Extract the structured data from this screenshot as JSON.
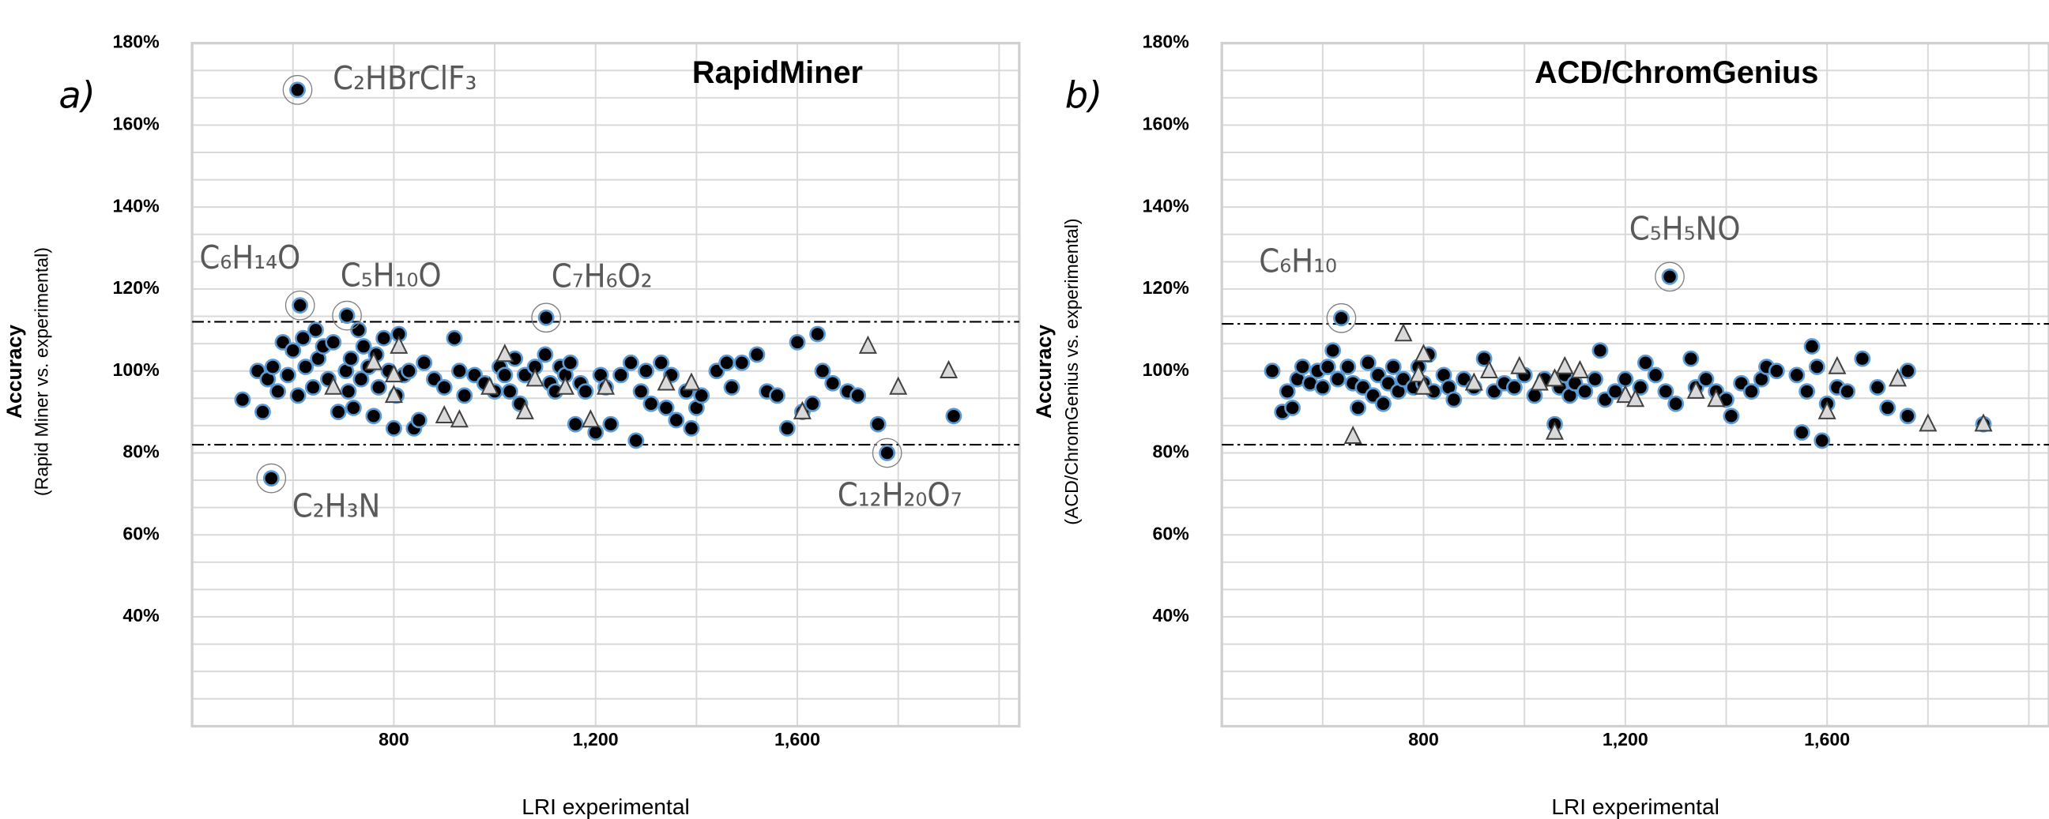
{
  "chart_data": [
    {
      "type": "scatter",
      "panel": "a)",
      "title": "RapidMiner",
      "y_label": "Accuracy",
      "y_sublabel": "(Rapid Miner vs. experimental)",
      "x_label": "LRI experimental",
      "xlim": [
        400,
        2040
      ],
      "ylim": [
        13.3,
        180
      ],
      "xticks": [
        800,
        {
          "value": 1200,
          "label": "1,200"
        },
        {
          "value": 1600,
          "label": "1,600"
        }
      ],
      "yticks": [
        {
          "value": 40,
          "label": "40%"
        },
        {
          "value": 60,
          "label": "60%"
        },
        {
          "value": 80,
          "label": "80%"
        },
        {
          "value": 100,
          "label": "100%"
        },
        {
          "value": 120,
          "label": "120%"
        },
        {
          "value": 140,
          "label": "140%"
        },
        {
          "value": 160,
          "label": "160%"
        },
        {
          "value": 180,
          "label": "180%"
        }
      ],
      "grid": true,
      "reference_lines": [
        112,
        82
      ],
      "series": [
        {
          "marker": "circle",
          "color": "#000000",
          "edge_color": "#5b9bd5",
          "x": [
            500,
            530,
            540,
            550,
            560,
            570,
            580,
            590,
            600,
            610,
            620,
            625,
            614,
            640,
            645,
            650,
            660,
            670,
            680,
            690,
            707,
            705,
            710,
            715,
            720,
            730,
            735,
            740,
            750,
            760,
            765,
            770,
            780,
            790,
            800,
            805,
            810,
            820,
            830,
            840,
            850,
            860,
            880,
            900,
            920,
            930,
            940,
            960,
            980,
            1000,
            1010,
            1020,
            1030,
            1040,
            1050,
            1060,
            1080,
            1102,
            1100,
            1110,
            1120,
            1130,
            1140,
            1150,
            1160,
            1170,
            1180,
            1200,
            1210,
            1220,
            1230,
            1250,
            1270,
            1280,
            1290,
            1300,
            1310,
            1330,
            1340,
            1350,
            1360,
            1380,
            1390,
            1400,
            1410,
            1440,
            1460,
            1470,
            1490,
            1520,
            1540,
            1560,
            1580,
            1600,
            1610,
            1630,
            1640,
            1650,
            1670,
            1700,
            1720,
            1760,
            1778,
            1910,
            557,
            609
          ],
          "values": [
            93,
            100,
            90,
            98,
            101,
            95,
            107,
            99,
            105,
            94,
            108,
            101,
            116,
            96,
            110,
            103,
            106,
            98,
            107,
            90,
            113.5,
            100,
            95,
            103,
            91,
            110,
            98,
            106,
            101,
            89,
            104,
            96,
            108,
            100,
            86,
            94,
            109,
            99,
            100,
            86,
            88,
            102,
            98,
            96,
            108,
            100,
            94,
            99,
            97,
            95,
            101,
            99,
            95,
            103,
            92,
            99,
            101,
            113,
            104,
            97,
            95,
            101,
            99,
            102,
            87,
            97,
            95,
            85,
            99,
            96,
            87,
            99,
            102,
            83,
            95,
            100,
            92,
            102,
            91,
            99,
            88,
            95,
            86,
            91,
            94,
            100,
            102,
            96,
            102,
            104,
            95,
            94,
            86,
            107,
            90,
            92,
            109,
            100,
            97,
            95,
            94,
            87,
            80,
            89,
            73.8,
            168.6
          ]
        },
        {
          "marker": "triangle",
          "color": "#d9d9d9",
          "edge_color": "#404040",
          "x": [
            680,
            760,
            800,
            800,
            810,
            900,
            930,
            990,
            1020,
            1060,
            1080,
            1140,
            1190,
            1220,
            1340,
            1390,
            1610,
            1740,
            1800,
            1900
          ],
          "values": [
            96,
            102,
            99,
            94,
            106,
            89,
            88,
            96,
            104,
            90,
            98,
            96,
            88,
            96,
            97,
            97,
            90,
            106,
            96,
            100
          ]
        }
      ],
      "annotations": [
        {
          "text": "C₂HBrClF₃",
          "x": 609,
          "y": 168.6
        },
        {
          "text": "C₆H₁₄O",
          "x": 614,
          "y": 116
        },
        {
          "text": "C₅H₁₀O",
          "x": 707,
          "y": 113.5
        },
        {
          "text": "C₇H₆O₂",
          "x": 1102,
          "y": 113
        },
        {
          "text": "C₂H₃N",
          "x": 557,
          "y": 73.8
        },
        {
          "text": "C₁₂H₂₀O₇",
          "x": 1778,
          "y": 80
        }
      ]
    },
    {
      "type": "scatter",
      "panel": "b)",
      "title": "ACD/ChromGenius",
      "y_label": "Accuracy",
      "y_sublabel": "(ACD/ChromGenius vs. experimental)",
      "x_label": "LRI experimental",
      "xlim": [
        400,
        2040
      ],
      "ylim": [
        13.3,
        180
      ],
      "xticks": [
        800,
        {
          "value": 1200,
          "label": "1,200"
        },
        {
          "value": 1600,
          "label": "1,600"
        }
      ],
      "yticks": [
        {
          "value": 40,
          "label": "40%"
        },
        {
          "value": 60,
          "label": "60%"
        },
        {
          "value": 80,
          "label": "80%"
        },
        {
          "value": 100,
          "label": "100%"
        },
        {
          "value": 120,
          "label": "120%"
        },
        {
          "value": 140,
          "label": "140%"
        },
        {
          "value": 160,
          "label": "160%"
        },
        {
          "value": 180,
          "label": "180%"
        }
      ],
      "grid": true,
      "reference_lines": [
        111.5,
        82
      ],
      "series": [
        {
          "marker": "circle",
          "color": "#000000",
          "edge_color": "#5b9bd5",
          "x": [
            500,
            520,
            530,
            540,
            550,
            560,
            575,
            590,
            600,
            610,
            620,
            630,
            637,
            650,
            660,
            670,
            680,
            690,
            700,
            710,
            720,
            730,
            740,
            750,
            760,
            780,
            790,
            800,
            810,
            820,
            840,
            850,
            860,
            880,
            900,
            920,
            940,
            960,
            980,
            1000,
            1020,
            1040,
            1060,
            1070,
            1080,
            1090,
            1100,
            1120,
            1140,
            1150,
            1160,
            1180,
            1200,
            1230,
            1240,
            1260,
            1280,
            1288,
            1300,
            1330,
            1340,
            1360,
            1380,
            1400,
            1410,
            1430,
            1450,
            1470,
            1480,
            1500,
            1540,
            1550,
            1560,
            1570,
            1580,
            1590,
            1600,
            1620,
            1640,
            1670,
            1700,
            1720,
            1760,
            1760,
            1910
          ],
          "values": [
            100,
            90,
            95,
            91,
            98,
            101,
            97,
            100,
            96,
            101,
            105,
            98,
            112.9,
            101,
            97,
            91,
            96,
            102,
            94,
            99,
            92,
            97,
            101,
            95,
            98,
            96,
            101,
            97,
            104,
            95,
            99,
            96,
            93,
            98,
            96,
            103,
            95,
            97,
            96,
            99,
            94,
            98,
            87,
            96,
            99,
            94,
            97,
            95,
            98,
            105,
            93,
            95,
            98,
            96,
            102,
            99,
            95,
            123,
            92,
            103,
            96,
            98,
            95,
            93,
            89,
            97,
            95,
            98,
            101,
            100,
            99,
            85,
            95,
            106,
            101,
            83,
            92,
            96,
            95,
            103,
            96,
            91,
            89,
            100,
            87
          ]
        },
        {
          "marker": "triangle",
          "color": "#d9d9d9",
          "edge_color": "#404040",
          "x": [
            660,
            760,
            790,
            800,
            800,
            900,
            930,
            990,
            1030,
            1060,
            1060,
            1080,
            1110,
            1200,
            1220,
            1340,
            1380,
            1600,
            1620,
            1740,
            1800,
            1910
          ],
          "values": [
            84,
            109,
            99,
            104,
            96,
            97,
            100,
            101,
            97,
            98,
            85,
            101,
            100,
            94,
            93,
            95,
            93,
            90,
            101,
            98,
            87,
            87
          ]
        }
      ],
      "annotations": [
        {
          "text": "C₆H₁₀",
          "x": 637,
          "y": 112.9
        },
        {
          "text": "C₅H₅NO",
          "x": 1288,
          "y": 123
        }
      ]
    }
  ]
}
